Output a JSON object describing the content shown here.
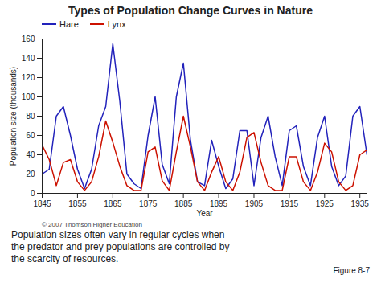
{
  "chart_data": {
    "type": "line",
    "title": "Types of Population Change Curves in Nature",
    "xlabel": "Year",
    "ylabel": "Population size (thousands)",
    "x": [
      1845,
      1847,
      1849,
      1851,
      1853,
      1855,
      1857,
      1859,
      1861,
      1863,
      1865,
      1867,
      1869,
      1871,
      1873,
      1875,
      1877,
      1879,
      1881,
      1883,
      1885,
      1887,
      1889,
      1891,
      1893,
      1895,
      1897,
      1899,
      1901,
      1903,
      1905,
      1907,
      1909,
      1911,
      1913,
      1915,
      1917,
      1919,
      1921,
      1923,
      1925,
      1927,
      1929,
      1931,
      1933,
      1935,
      1937
    ],
    "series": [
      {
        "name": "Hare",
        "color": "#2222bb",
        "values": [
          20,
          25,
          80,
          90,
          60,
          25,
          5,
          25,
          70,
          90,
          155,
          95,
          20,
          10,
          5,
          60,
          100,
          30,
          10,
          100,
          135,
          55,
          12,
          8,
          55,
          28,
          5,
          15,
          65,
          65,
          8,
          58,
          80,
          38,
          8,
          65,
          70,
          28,
          8,
          58,
          80,
          28,
          8,
          18,
          80,
          90,
          40
        ]
      },
      {
        "name": "Lynx",
        "color": "#cc1100",
        "values": [
          50,
          35,
          8,
          32,
          35,
          12,
          3,
          12,
          38,
          75,
          53,
          28,
          8,
          3,
          3,
          43,
          48,
          13,
          3,
          43,
          80,
          48,
          12,
          3,
          22,
          38,
          12,
          3,
          22,
          58,
          63,
          32,
          8,
          3,
          3,
          38,
          38,
          12,
          3,
          22,
          52,
          43,
          12,
          3,
          8,
          40,
          45
        ]
      }
    ],
    "xlim": [
      1845,
      1937
    ],
    "ylim": [
      0,
      160
    ],
    "xticks": [
      1845,
      1855,
      1865,
      1875,
      1885,
      1895,
      1905,
      1915,
      1925,
      1935
    ],
    "yticks": [
      0,
      20,
      40,
      60,
      80,
      100,
      120,
      140,
      160
    ],
    "grid": false,
    "legend": "upper left",
    "annotations": [
      "© 2007 Thomson Higher Education",
      "Population sizes often vary in regular cycles when",
      "the predator and prey populations are controlled by",
      "the scarcity of resources.",
      "Figure 8-7"
    ]
  }
}
